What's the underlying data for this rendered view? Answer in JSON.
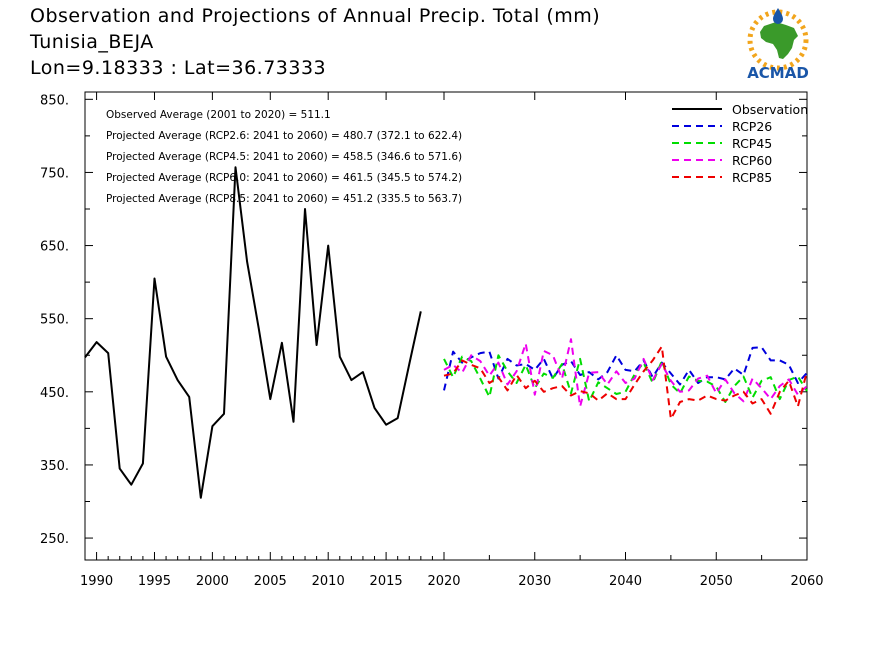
{
  "header": {
    "line1": "Observation and Projections of Annual Precip. Total (mm)",
    "line2": "Tunisia_BEJA",
    "line3": "Lon=9.18333 : Lat=36.73333"
  },
  "logo": {
    "text": "ACMAD",
    "color_text": "#1a56a8",
    "color_africa": "#3a9a2a",
    "color_sun": "#f2a51c"
  },
  "chart_data": {
    "type": "line",
    "ylim": [
      220,
      860
    ],
    "yticks": [
      250,
      350,
      450,
      550,
      650,
      750,
      850
    ],
    "ytick_labels": [
      "250.",
      "350.",
      "450.",
      "550.",
      "650.",
      "750.",
      "850."
    ],
    "xticks_hist": [
      1990,
      1995,
      2000,
      2005,
      2010,
      2015,
      2020
    ],
    "xticks_proj": [
      2030,
      2040,
      2050,
      2060
    ],
    "annotations": [
      "Observed Average (2001 to 2020) = 511.1",
      "Projected Average (RCP2.6: 2041 to 2060) = 480.7 (372.1 to 622.4)",
      "Projected Average (RCP4.5: 2041 to 2060) = 458.5 (346.6 to 571.6)",
      "Projected Average (RCP6.0: 2041 to 2060) = 461.5 (345.5 to 574.2)",
      "Projected Average (RCP8.5: 2041 to 2060) = 451.2 (335.5 to 563.7)"
    ],
    "legend": [
      {
        "name": "Observation",
        "color": "#000000",
        "dash": "solid"
      },
      {
        "name": "RCP26",
        "color": "#0000dd",
        "dash": "dashed"
      },
      {
        "name": "RCP45",
        "color": "#00dd00",
        "dash": "dashed"
      },
      {
        "name": "RCP60",
        "color": "#ee00ee",
        "dash": "dashed"
      },
      {
        "name": "RCP85",
        "color": "#ee0000",
        "dash": "dashed"
      }
    ],
    "observation": {
      "x": [
        1989,
        1990,
        1991,
        1992,
        1993,
        1994,
        1995,
        1996,
        1997,
        1998,
        1999,
        2000,
        2001,
        2002,
        2003,
        2004,
        2005,
        2006,
        2007,
        2008,
        2009,
        2010,
        2011,
        2012,
        2013,
        2014,
        2015,
        2016,
        2017,
        2018,
        2019,
        2020
      ],
      "y": [
        497,
        518,
        503,
        345,
        323,
        352,
        605,
        498,
        466,
        443,
        305,
        403,
        420,
        757,
        628,
        537,
        440,
        517,
        409,
        700,
        514,
        650,
        498,
        466,
        477,
        428,
        405,
        414,
        488,
        560,
        null,
        null
      ]
    },
    "projections": [
      {
        "name": "RCP26",
        "color": "#0000dd",
        "x": [
          2020,
          2021,
          2022,
          2023,
          2024,
          2025,
          2026,
          2027,
          2028,
          2029,
          2030,
          2031,
          2032,
          2033,
          2034,
          2035,
          2036,
          2037,
          2038,
          2039,
          2040,
          2041,
          2042,
          2043,
          2044,
          2045,
          2046,
          2047,
          2048,
          2049,
          2050,
          2051,
          2052,
          2053,
          2054,
          2055,
          2056,
          2057,
          2058,
          2059,
          2060
        ],
        "y": [
          452,
          505,
          490,
          497,
          503,
          505,
          468,
          495,
          486,
          488,
          480,
          495,
          468,
          487,
          492,
          473,
          477,
          467,
          477,
          500,
          480,
          478,
          493,
          470,
          490,
          475,
          460,
          480,
          462,
          470,
          470,
          467,
          482,
          473,
          510,
          511,
          493,
          493,
          487,
          462,
          476
        ]
      },
      {
        "name": "RCP45",
        "color": "#00dd00",
        "x": [
          2020,
          2021,
          2022,
          2023,
          2024,
          2025,
          2026,
          2027,
          2028,
          2029,
          2030,
          2031,
          2032,
          2033,
          2034,
          2035,
          2036,
          2037,
          2038,
          2039,
          2040,
          2041,
          2042,
          2043,
          2044,
          2045,
          2046,
          2047,
          2048,
          2049,
          2050,
          2051,
          2052,
          2053,
          2054,
          2055,
          2056,
          2057,
          2058,
          2059,
          2060
        ],
        "y": [
          495,
          470,
          498,
          492,
          468,
          443,
          500,
          478,
          462,
          487,
          455,
          475,
          469,
          488,
          448,
          495,
          437,
          463,
          455,
          447,
          450,
          474,
          490,
          462,
          492,
          460,
          448,
          471,
          465,
          464,
          457,
          436,
          458,
          471,
          442,
          465,
          470,
          440,
          466,
          471,
          451
        ]
      },
      {
        "name": "RCP60",
        "color": "#ee00ee",
        "x": [
          2020,
          2021,
          2022,
          2023,
          2024,
          2025,
          2026,
          2027,
          2028,
          2029,
          2030,
          2031,
          2032,
          2033,
          2034,
          2035,
          2036,
          2037,
          2038,
          2039,
          2040,
          2041,
          2042,
          2043,
          2044,
          2045,
          2046,
          2047,
          2048,
          2049,
          2050,
          2051,
          2052,
          2053,
          2054,
          2055,
          2056,
          2057,
          2058,
          2059,
          2060
        ],
        "y": [
          480,
          487,
          476,
          500,
          492,
          472,
          490,
          460,
          478,
          516,
          446,
          506,
          500,
          468,
          522,
          430,
          476,
          477,
          460,
          478,
          462,
          468,
          495,
          466,
          488,
          465,
          450,
          452,
          468,
          472,
          448,
          467,
          448,
          437,
          468,
          455,
          440,
          458,
          467,
          446,
          458
        ]
      },
      {
        "name": "RCP85",
        "color": "#ee0000",
        "x": [
          2020,
          2021,
          2022,
          2023,
          2024,
          2025,
          2026,
          2027,
          2028,
          2029,
          2030,
          2031,
          2032,
          2033,
          2034,
          2035,
          2036,
          2037,
          2038,
          2039,
          2040,
          2041,
          2042,
          2043,
          2044,
          2045,
          2046,
          2047,
          2048,
          2049,
          2050,
          2051,
          2052,
          2053,
          2054,
          2055,
          2056,
          2057,
          2058,
          2059,
          2060
        ],
        "y": [
          472,
          475,
          493,
          487,
          482,
          462,
          470,
          452,
          473,
          455,
          465,
          450,
          455,
          458,
          445,
          451,
          448,
          438,
          448,
          440,
          440,
          460,
          478,
          493,
          512,
          413,
          436,
          440,
          438,
          445,
          440,
          438,
          445,
          450,
          434,
          440,
          420,
          450,
          465,
          430,
          478
        ]
      }
    ]
  }
}
